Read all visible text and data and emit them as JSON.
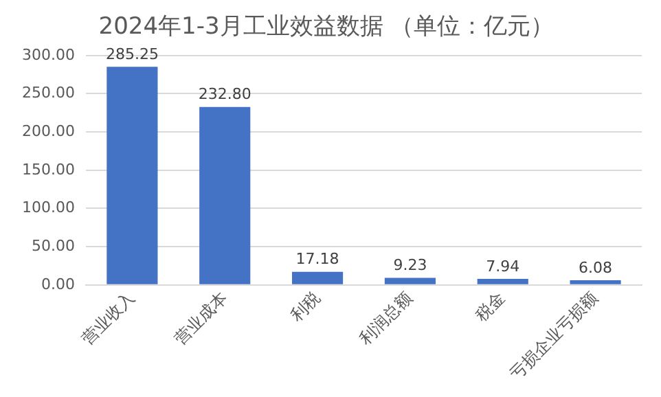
{
  "chart_data": {
    "type": "bar",
    "title": "2024年1-3月工业效益数据 （单位：亿元）",
    "categories": [
      "营业收入",
      "营业成本",
      "利税",
      "利润总额",
      "税金",
      "亏损企业亏损额"
    ],
    "values": [
      285.25,
      232.8,
      17.18,
      9.23,
      7.94,
      6.08
    ],
    "value_labels": [
      "285.25",
      "232.80",
      "17.18",
      "9.23",
      "7.94",
      "6.08"
    ],
    "color": "#4472c4",
    "ylim": [
      0,
      300
    ],
    "yticks": [
      {
        "value": 0,
        "label": "0.00"
      },
      {
        "value": 50,
        "label": "50.00"
      },
      {
        "value": 100,
        "label": "100.00"
      },
      {
        "value": 150,
        "label": "150.00"
      },
      {
        "value": 200,
        "label": "200.00"
      },
      {
        "value": 250,
        "label": "250.00"
      },
      {
        "value": 300,
        "label": "300.00"
      }
    ],
    "grid": "y",
    "legend": false
  }
}
